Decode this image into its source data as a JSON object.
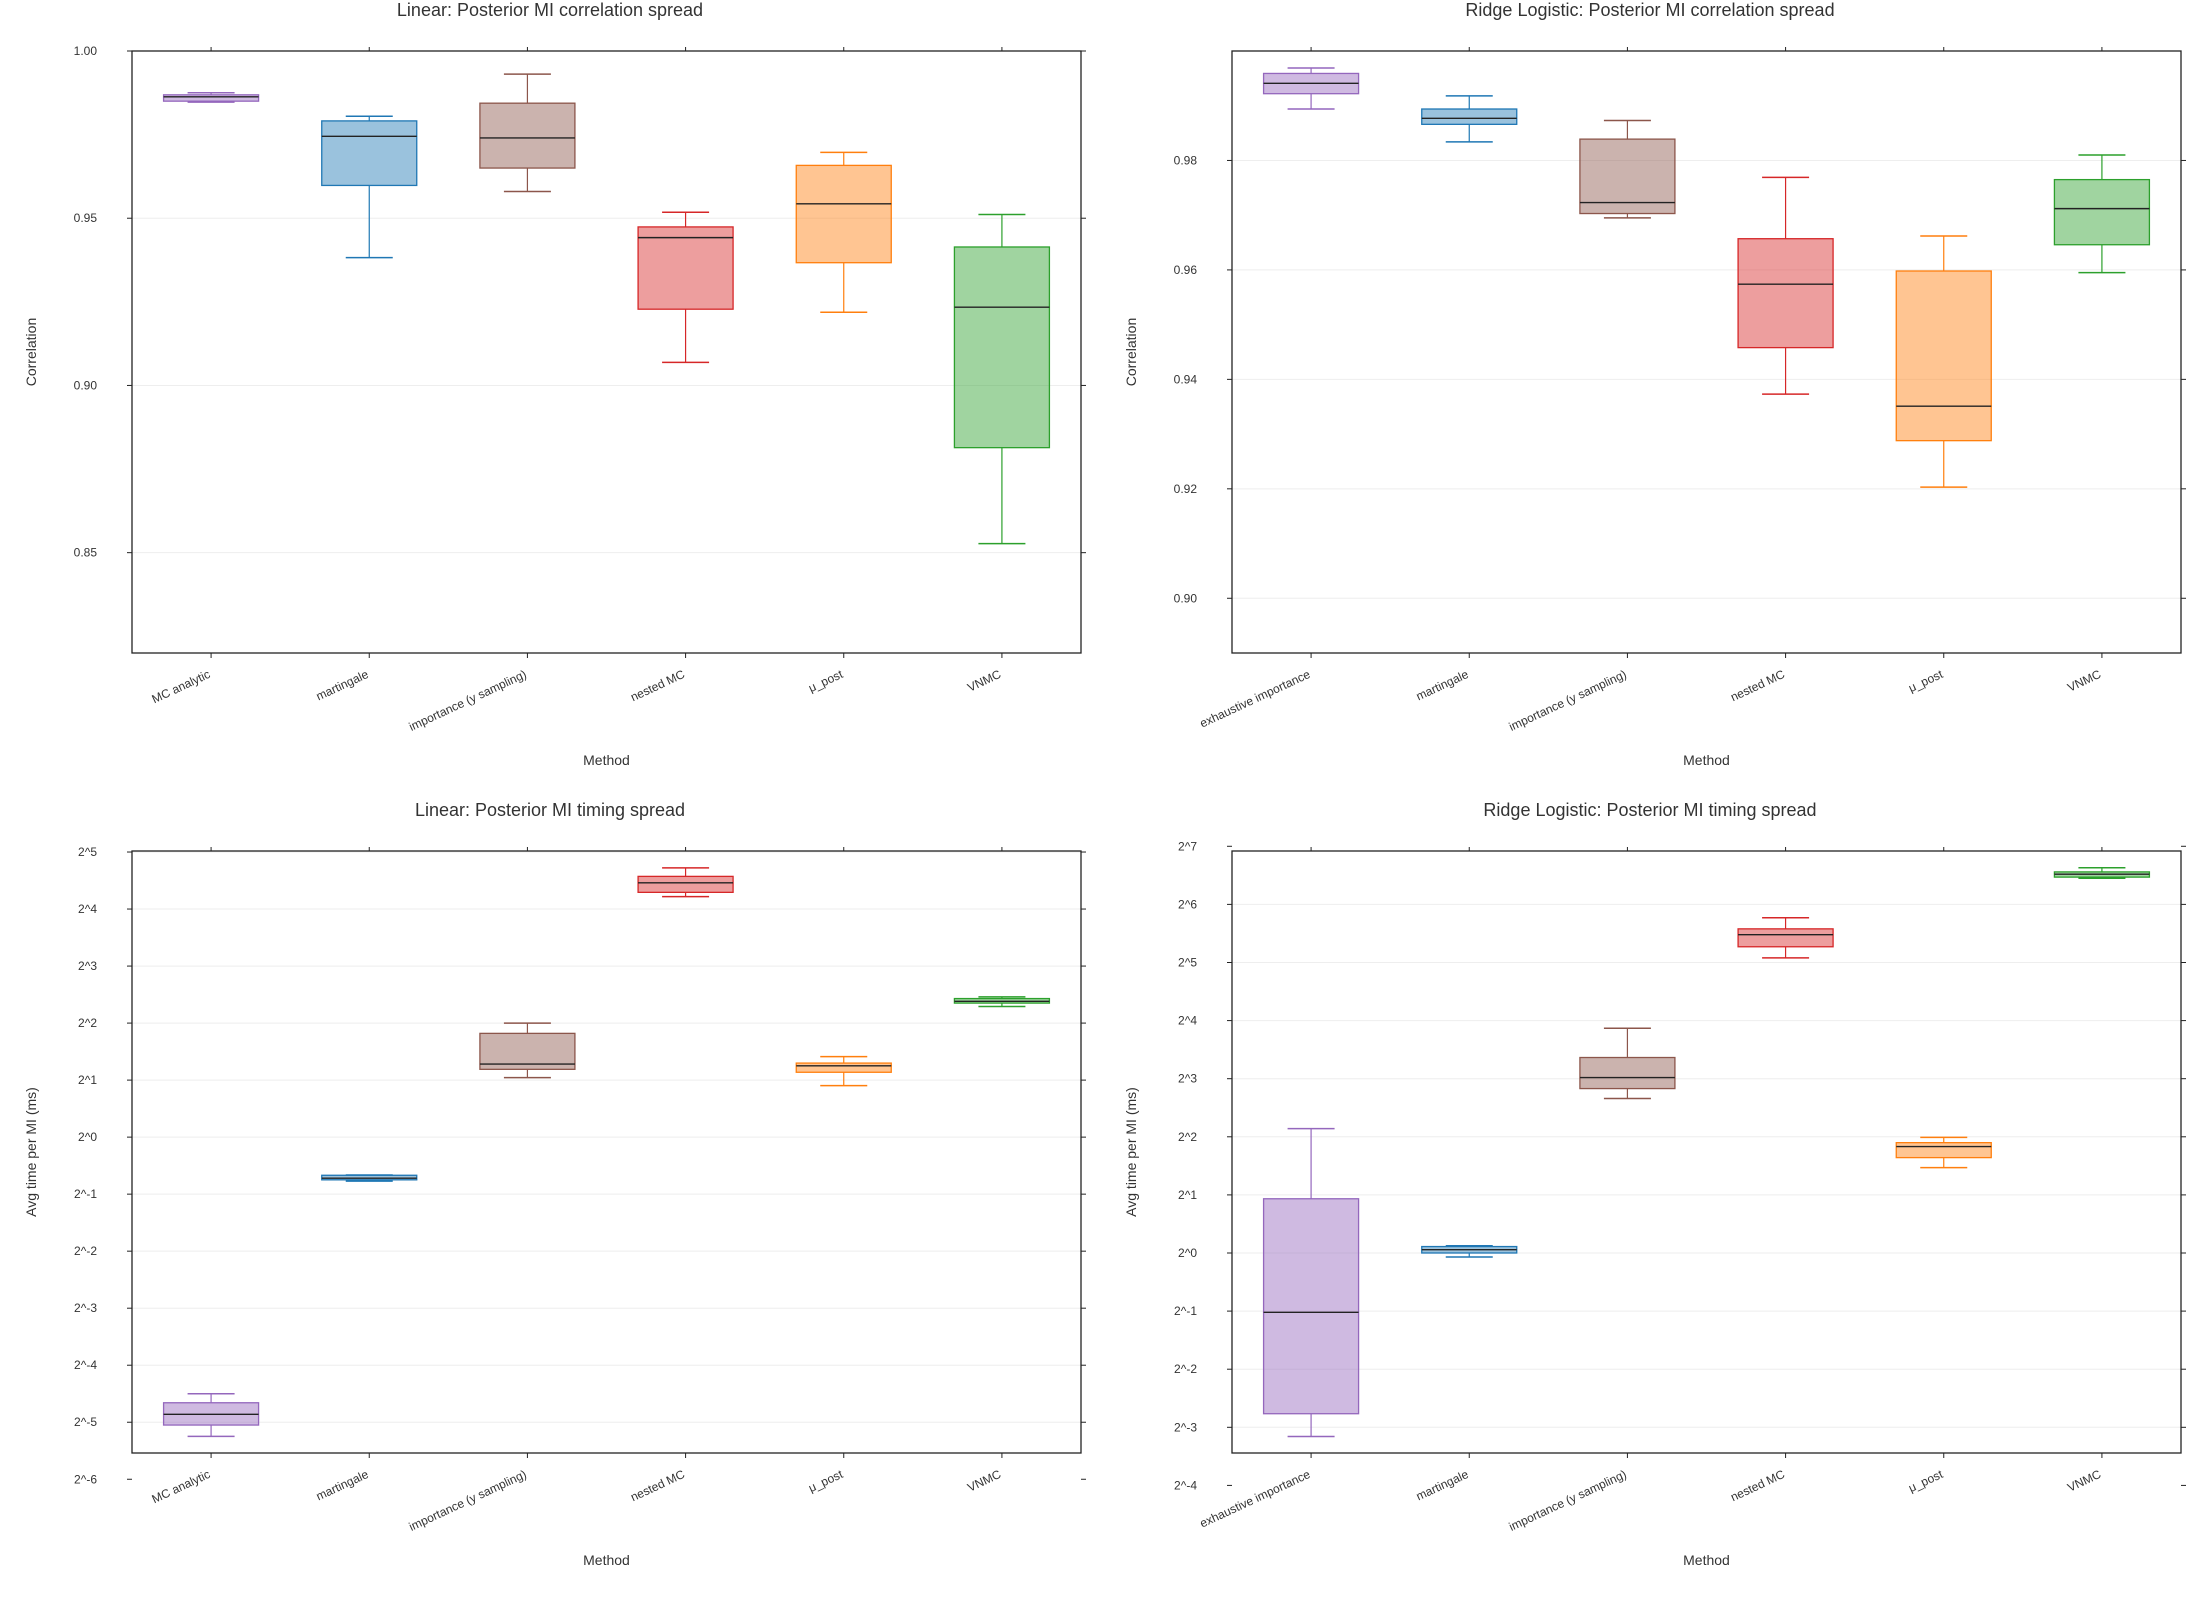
{
  "colors": [
    "#9467bd",
    "#1f77b4",
    "#8c564b",
    "#d62728",
    "#ff7f0e",
    "#2ca02c"
  ],
  "chart_data": [
    {
      "type": "box",
      "title": "Linear: Posterior MI correlation spread",
      "xlabel": "Method",
      "ylabel": "Correlation",
      "scale": "linear",
      "ylim": [
        0.82,
        1.0
      ],
      "yticks": [
        1.0,
        0.95,
        0.9,
        0.85
      ],
      "ytick_labels": [
        "1.00",
        "0.95",
        "0.90",
        "0.85"
      ],
      "grid": true,
      "categories": [
        "MC analytic",
        "martingale",
        "importance (y sampling)",
        "nested MC",
        "μ_post",
        "VNMC"
      ],
      "boxes": [
        {
          "whisker_high": 0.9875,
          "q3": 0.9869,
          "median": 0.9863,
          "q1": 0.985,
          "whisker_low": 0.9847
        },
        {
          "whisker_high": 0.9805,
          "q3": 0.9791,
          "median": 0.9745,
          "q1": 0.9598,
          "whisker_low": 0.9382
        },
        {
          "whisker_high": 0.9931,
          "q3": 0.9844,
          "median": 0.974,
          "q1": 0.965,
          "whisker_low": 0.958
        },
        {
          "whisker_high": 0.9518,
          "q3": 0.9474,
          "median": 0.9442,
          "q1": 0.9228,
          "whisker_low": 0.9069
        },
        {
          "whisker_high": 0.9697,
          "q3": 0.9658,
          "median": 0.9543,
          "q1": 0.9367,
          "whisker_low": 0.9219
        },
        {
          "whisker_high": 0.9511,
          "q3": 0.9414,
          "median": 0.9234,
          "q1": 0.8814,
          "whisker_low": 0.8527
        }
      ]
    },
    {
      "type": "box",
      "title": "Ridge Logistic: Posterior MI correlation spread",
      "xlabel": "Method",
      "ylabel": "Correlation",
      "scale": "linear",
      "ylim": [
        0.89,
        1.0
      ],
      "yticks": [
        0.98,
        0.96,
        0.94,
        0.92,
        0.9
      ],
      "ytick_labels": [
        "0.98",
        "0.96",
        "0.94",
        "0.92",
        "0.90"
      ],
      "grid": true,
      "categories": [
        "exhaustive importance",
        "martingale",
        "importance (y sampling)",
        "nested MC",
        "μ_post",
        "VNMC"
      ],
      "boxes": [
        {
          "whisker_high": 0.9969,
          "q3": 0.9959,
          "median": 0.9941,
          "q1": 0.9922,
          "whisker_low": 0.9894
        },
        {
          "whisker_high": 0.9918,
          "q3": 0.9894,
          "median": 0.9877,
          "q1": 0.9866,
          "whisker_low": 0.9834
        },
        {
          "whisker_high": 0.9873,
          "q3": 0.9839,
          "median": 0.9723,
          "q1": 0.9703,
          "whisker_low": 0.9695
        },
        {
          "whisker_high": 0.9769,
          "q3": 0.9657,
          "median": 0.9574,
          "q1": 0.9458,
          "whisker_low": 0.9373
        },
        {
          "whisker_high": 0.9662,
          "q3": 0.9598,
          "median": 0.9351,
          "q1": 0.9288,
          "whisker_low": 0.9203
        },
        {
          "whisker_high": 0.981,
          "q3": 0.9765,
          "median": 0.9712,
          "q1": 0.9646,
          "whisker_low": 0.9595
        }
      ]
    },
    {
      "type": "box",
      "title": "Linear: Posterior MI timing spread",
      "xlabel": "Method",
      "ylabel": "Avg time per MI (ms)",
      "scale": "log2",
      "ylim": [
        0.0215,
        32.4
      ],
      "yticks": [
        32,
        16,
        8,
        4,
        2,
        1,
        0.5,
        0.25,
        0.125,
        0.0625,
        0.03125,
        0.015625
      ],
      "ytick_labels": [
        "2^5",
        "2^4",
        "2^3",
        "2^2",
        "2^1",
        "2^0",
        "2^-1",
        "2^-2",
        "2^-3",
        "2^-4",
        "2^-5",
        "2^-6"
      ],
      "grid": true,
      "categories": [
        "MC analytic",
        "martingale",
        "importance (y sampling)",
        "nested MC",
        "μ_post",
        "VNMC"
      ],
      "boxes": [
        {
          "whisker_high": 0.0442,
          "q3": 0.0396,
          "median": 0.0344,
          "q1": 0.0302,
          "whisker_low": 0.0263
        },
        {
          "whisker_high": 0.631,
          "q3": 0.629,
          "median": 0.607,
          "q1": 0.595,
          "whisker_low": 0.586
        },
        {
          "whisker_high": 4.0,
          "q3": 3.53,
          "median": 2.43,
          "q1": 2.28,
          "whisker_low": 2.06
        },
        {
          "whisker_high": 26.4,
          "q3": 23.8,
          "median": 22.0,
          "q1": 19.6,
          "whisker_low": 18.6
        },
        {
          "whisker_high": 2.66,
          "q3": 2.46,
          "median": 2.38,
          "q1": 2.2,
          "whisker_low": 1.87
        },
        {
          "whisker_high": 5.5,
          "q3": 5.39,
          "median": 5.21,
          "q1": 5.1,
          "whisker_low": 4.89
        }
      ]
    },
    {
      "type": "box",
      "title": "Ridge Logistic: Posterior MI timing spread",
      "xlabel": "Method",
      "ylabel": "Avg time per MI (ms)",
      "scale": "log2",
      "ylim": [
        0.092,
        121
      ],
      "yticks": [
        128,
        64,
        32,
        16,
        8,
        4,
        2,
        1,
        0.5,
        0.25,
        0.125,
        0.0625
      ],
      "ytick_labels": [
        "2^7",
        "2^6",
        "2^5",
        "2^4",
        "2^3",
        "2^2",
        "2^1",
        "2^0",
        "2^-1",
        "2^-2",
        "2^-3",
        "2^-4"
      ],
      "grid": true,
      "categories": [
        "exhaustive importance",
        "martingale",
        "importance (y sampling)",
        "nested MC",
        "μ_post",
        "VNMC"
      ],
      "boxes": [
        {
          "whisker_high": 4.41,
          "q3": 1.91,
          "median": 0.493,
          "q1": 0.147,
          "whisker_low": 0.112
        },
        {
          "whisker_high": 1.09,
          "q3": 1.08,
          "median": 1.04,
          "q1": 1.0,
          "whisker_low": 0.953
        },
        {
          "whisker_high": 14.6,
          "q3": 10.3,
          "median": 8.11,
          "q1": 7.11,
          "whisker_low": 6.32
        },
        {
          "whisker_high": 54.6,
          "q3": 47.8,
          "median": 44.6,
          "q1": 38.6,
          "whisker_low": 33.8
        },
        {
          "whisker_high": 3.97,
          "q3": 3.73,
          "median": 3.56,
          "q1": 3.12,
          "whisker_low": 2.77
        },
        {
          "whisker_high": 99.1,
          "q3": 94.3,
          "median": 91.8,
          "q1": 88.6,
          "whisker_low": 87.4
        }
      ]
    }
  ]
}
